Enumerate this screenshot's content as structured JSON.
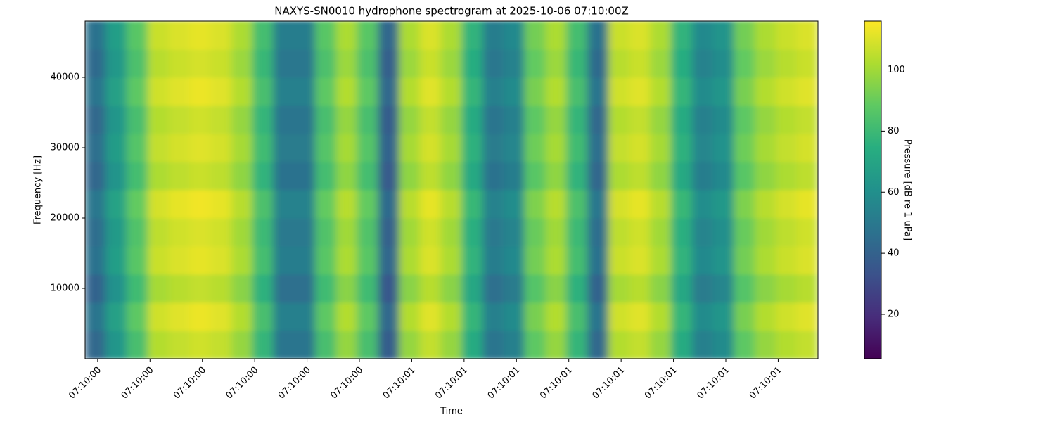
{
  "chart_data": {
    "type": "heatmap",
    "title": "NAXYS-SN0010 hydrophone spectrogram at 2025-10-06 07:10:00Z",
    "x_label": "Time",
    "y_label": "Frequency [Hz]",
    "colorbar_label": "Pressure [dB re 1 uPa]",
    "colormap": "viridis",
    "clim": [
      5.5,
      116
    ],
    "colorbar_ticks": [
      20,
      40,
      60,
      80,
      100
    ],
    "x": [
      0.376,
      0.416,
      0.456,
      0.496,
      0.536,
      0.576,
      0.616,
      0.656,
      0.696,
      0.736,
      0.776,
      0.816,
      0.856,
      0.896,
      0.936,
      0.976,
      1.016,
      1.056,
      1.096,
      1.136,
      1.176,
      1.216,
      1.256,
      1.296,
      1.336,
      1.376,
      1.416,
      1.456,
      1.496,
      1.536,
      1.576,
      1.616,
      1.656,
      1.696,
      1.736,
      1.776
    ],
    "y": [
      0,
      4000,
      8000,
      12000,
      16000,
      20000,
      24000,
      28000,
      32000,
      36000,
      40000,
      44000,
      48000
    ],
    "xlim": [
      0.376,
      1.776
    ],
    "ylim": [
      0,
      48000
    ],
    "xticks": [
      {
        "value": 0.4,
        "label": "07:10:00"
      },
      {
        "value": 0.5,
        "label": "07:10:00"
      },
      {
        "value": 0.6,
        "label": "07:10:00"
      },
      {
        "value": 0.7,
        "label": "07:10:00"
      },
      {
        "value": 0.8,
        "label": "07:10:00"
      },
      {
        "value": 0.9,
        "label": "07:10:00"
      },
      {
        "value": 1.0,
        "label": "07:10:01"
      },
      {
        "value": 1.1,
        "label": "07:10:01"
      },
      {
        "value": 1.2,
        "label": "07:10:01"
      },
      {
        "value": 1.3,
        "label": "07:10:01"
      },
      {
        "value": 1.4,
        "label": "07:10:01"
      },
      {
        "value": 1.5,
        "label": "07:10:01"
      },
      {
        "value": 1.6,
        "label": "07:10:01"
      },
      {
        "value": 1.7,
        "label": "07:10:01"
      }
    ],
    "yticks": [
      10000,
      20000,
      30000,
      40000
    ],
    "values": [
      [
        43,
        63,
        83,
        103,
        106,
        108,
        106,
        98,
        78,
        48,
        48,
        83,
        98,
        83,
        38,
        98,
        106,
        98,
        73,
        48,
        53,
        88,
        98,
        78,
        43,
        103,
        106,
        98,
        73,
        53,
        58,
        88,
        98,
        103,
        106
      ],
      [
        48,
        68,
        88,
        108,
        111,
        113,
        111,
        103,
        83,
        53,
        53,
        88,
        103,
        88,
        43,
        103,
        111,
        103,
        78,
        53,
        58,
        93,
        103,
        83,
        48,
        108,
        111,
        103,
        78,
        58,
        63,
        93,
        103,
        108,
        111
      ],
      [
        41,
        61,
        81,
        101,
        104,
        106,
        104,
        96,
        76,
        46,
        46,
        81,
        96,
        81,
        36,
        96,
        104,
        96,
        71,
        46,
        51,
        86,
        96,
        76,
        41,
        101,
        104,
        96,
        71,
        51,
        56,
        86,
        96,
        101,
        104
      ],
      [
        47,
        67,
        87,
        107,
        110,
        112,
        110,
        102,
        82,
        52,
        52,
        87,
        102,
        87,
        42,
        102,
        110,
        102,
        77,
        52,
        57,
        92,
        102,
        82,
        47,
        107,
        110,
        102,
        77,
        57,
        62,
        92,
        102,
        107,
        110
      ],
      [
        45,
        65,
        85,
        105,
        108,
        110,
        108,
        100,
        80,
        50,
        50,
        85,
        100,
        85,
        40,
        100,
        108,
        100,
        75,
        50,
        55,
        90,
        100,
        80,
        45,
        105,
        108,
        100,
        75,
        55,
        60,
        90,
        100,
        105,
        108
      ],
      [
        49,
        69,
        89,
        109,
        112,
        114,
        112,
        104,
        84,
        54,
        54,
        89,
        104,
        89,
        44,
        104,
        112,
        104,
        79,
        54,
        59,
        94,
        104,
        84,
        49,
        109,
        112,
        104,
        79,
        59,
        64,
        94,
        104,
        109,
        112
      ],
      [
        42,
        62,
        82,
        102,
        105,
        107,
        105,
        97,
        77,
        47,
        47,
        82,
        97,
        82,
        37,
        97,
        105,
        97,
        72,
        47,
        52,
        87,
        97,
        77,
        42,
        102,
        105,
        97,
        72,
        52,
        57,
        87,
        97,
        102,
        105
      ],
      [
        46,
        66,
        86,
        106,
        109,
        111,
        109,
        101,
        81,
        51,
        51,
        86,
        101,
        86,
        41,
        101,
        109,
        101,
        76,
        51,
        56,
        91,
        101,
        81,
        46,
        106,
        109,
        101,
        76,
        56,
        61,
        91,
        101,
        106,
        109
      ],
      [
        43,
        63,
        83,
        103,
        106,
        108,
        106,
        98,
        78,
        48,
        48,
        83,
        98,
        83,
        38,
        98,
        106,
        98,
        73,
        48,
        53,
        88,
        98,
        78,
        43,
        103,
        106,
        98,
        73,
        53,
        58,
        88,
        98,
        103,
        106
      ],
      [
        48,
        68,
        88,
        108,
        111,
        113,
        111,
        103,
        83,
        53,
        53,
        88,
        103,
        88,
        43,
        103,
        111,
        103,
        78,
        53,
        58,
        93,
        103,
        83,
        48,
        108,
        111,
        103,
        78,
        58,
        63,
        93,
        103,
        108,
        111
      ],
      [
        44,
        64,
        84,
        104,
        107,
        109,
        107,
        99,
        79,
        49,
        49,
        84,
        99,
        84,
        39,
        99,
        107,
        99,
        74,
        49,
        54,
        89,
        99,
        79,
        44,
        104,
        107,
        99,
        74,
        54,
        59,
        89,
        99,
        104,
        107
      ],
      [
        47,
        67,
        87,
        107,
        110,
        112,
        110,
        102,
        82,
        52,
        52,
        87,
        102,
        87,
        42,
        102,
        110,
        102,
        77,
        52,
        57,
        92,
        102,
        82,
        47,
        107,
        110,
        102,
        77,
        57,
        62,
        92,
        102,
        107,
        110
      ]
    ]
  }
}
